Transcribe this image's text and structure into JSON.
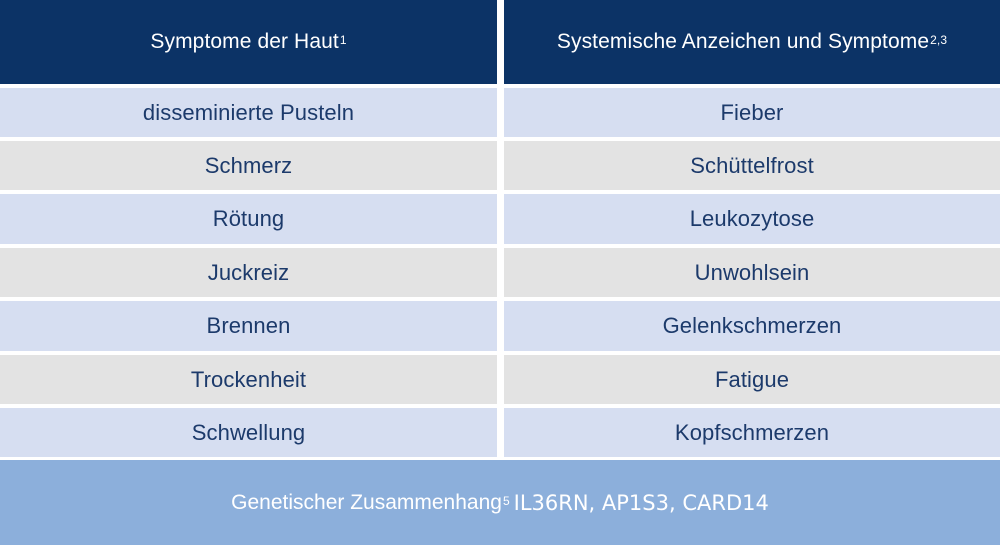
{
  "colors": {
    "header_bg": "#0c3366",
    "row_blue": "#d6def1",
    "row_gray": "#e3e3e3",
    "footer_bg": "#8cafdb",
    "body_text": "#1c3a6b",
    "header_text": "#ffffff"
  },
  "header": {
    "left": {
      "text": "Symptome der Haut",
      "sup": "1"
    },
    "right": {
      "text": "Systemische Anzeichen und Symptome",
      "sup": "2,3"
    }
  },
  "rows": [
    {
      "left": "disseminierte Pusteln",
      "right": "Fieber"
    },
    {
      "left": "Schmerz",
      "right": "Schüttelfrost"
    },
    {
      "left": "Rötung",
      "right": "Leukozytose"
    },
    {
      "left": "Juckreiz",
      "right": "Unwohlsein"
    },
    {
      "left": "Brennen",
      "right": "Gelenkschmerzen"
    },
    {
      "left": "Trockenheit",
      "right": "Fatigue"
    },
    {
      "left": "Schwellung",
      "right": "Kopfschmerzen"
    }
  ],
  "footer": {
    "label": "Genetischer Zusammenhang",
    "sup": "5",
    "genes": "IL36RN, AP1S3, CARD14"
  }
}
